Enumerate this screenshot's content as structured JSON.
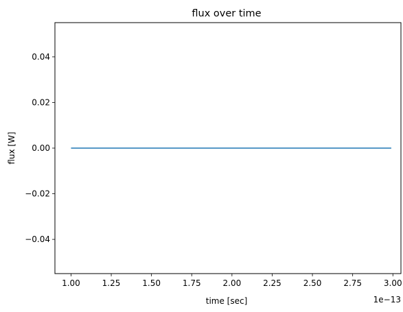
{
  "chart_data": {
    "type": "line",
    "title": "flux over time",
    "xlabel": "time [sec]",
    "ylabel": "flux [W]",
    "x_offset_label": "1e−13",
    "x_scale": 1e-13,
    "xlim": [
      0.9,
      3.05
    ],
    "ylim": [
      -0.055,
      0.055
    ],
    "x_ticks": [
      1.0,
      1.25,
      1.5,
      1.75,
      2.0,
      2.25,
      2.5,
      2.75,
      3.0
    ],
    "x_tick_labels": [
      "1.00",
      "1.25",
      "1.50",
      "1.75",
      "2.00",
      "2.25",
      "2.50",
      "2.75",
      "3.00"
    ],
    "y_ticks": [
      -0.04,
      -0.02,
      0.0,
      0.02,
      0.04
    ],
    "y_tick_labels": [
      "−0.04",
      "−0.02",
      "0.00",
      "0.02",
      "0.04"
    ],
    "grid": false,
    "series": [
      {
        "color": "#1f77b4",
        "x": [
          1.0,
          1.5,
          2.0,
          2.5,
          2.99
        ],
        "y": [
          0,
          0,
          0,
          0,
          0
        ]
      }
    ]
  }
}
